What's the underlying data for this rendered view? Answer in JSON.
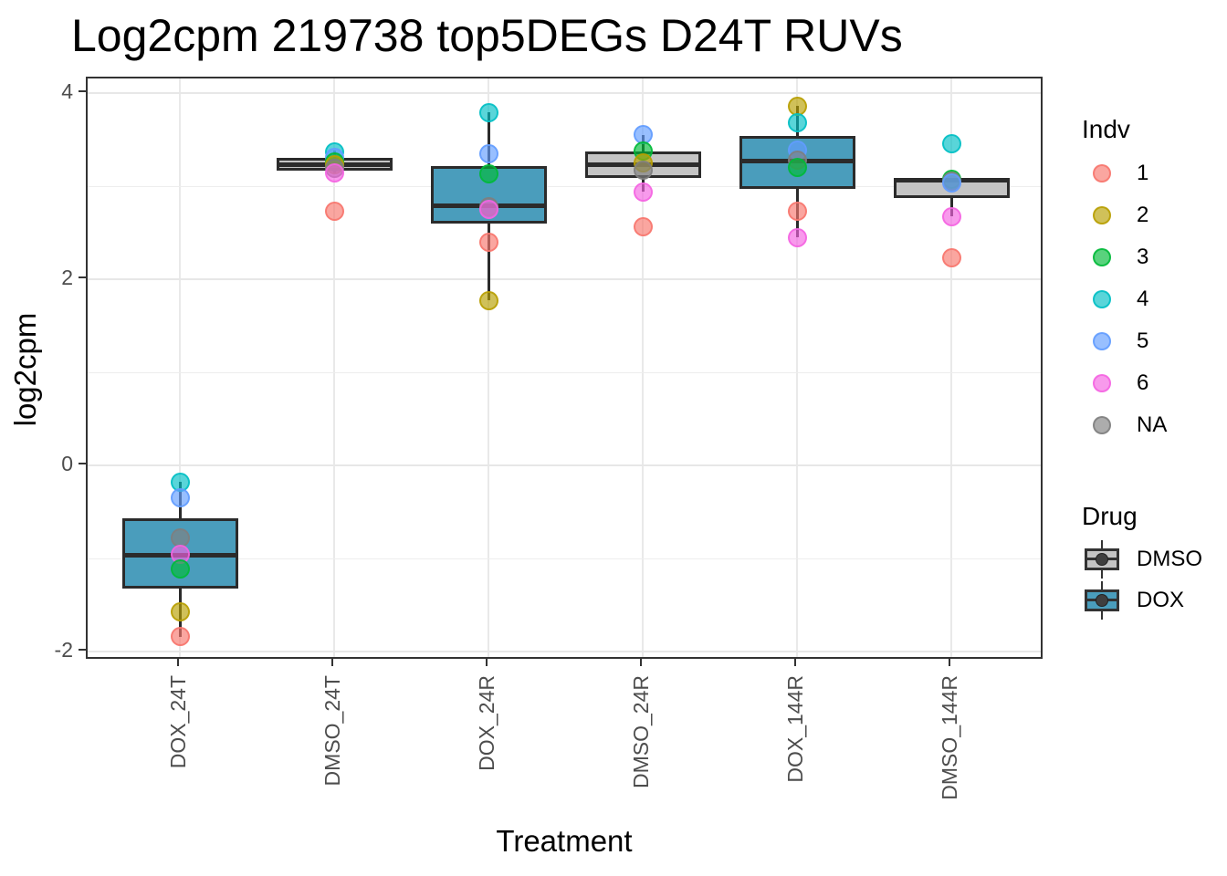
{
  "colors": {
    "panel_border": "#333333",
    "box_outline": "#2b2b2b",
    "grid_major": "#e7e7e7",
    "grid_minor": "#ededed",
    "axis_text": "#4d4d4d",
    "drug_fill": {
      "DMSO": "#c4c4c4",
      "DOX": "#4a9dbc"
    },
    "indv_base": {
      "1": "#F8766D",
      "2": "#B79F00",
      "3": "#00BA38",
      "4": "#00BFC4",
      "5": "#619CFF",
      "6": "#F564E2",
      "NA": "#7F7F7F"
    },
    "point_alpha": 0.65
  },
  "chart_data": {
    "type": "boxplot",
    "title": "Log2cpm 219738 top5DEGs D24T RUVs",
    "xlabel": "Treatment",
    "ylabel": "log2cpm",
    "ylim": [
      -2.1,
      4.16
    ],
    "y_ticks": [
      {
        "v": 4,
        "label": "4"
      },
      {
        "v": 2,
        "label": "2"
      },
      {
        "v": 0,
        "label": "0"
      },
      {
        "v": -2,
        "label": "-2"
      }
    ],
    "y_minor": [
      3,
      1,
      -1
    ],
    "grid": true,
    "categories": [
      "DOX_24T",
      "DMSO_24T",
      "DOX_24R",
      "DMSO_24R",
      "DOX_144R",
      "DMSO_144R"
    ],
    "groups": [
      {
        "category": "DOX_24T",
        "drug": "DOX",
        "box": {
          "q1": -1.32,
          "median": -0.96,
          "q3": -0.57,
          "whisker_low": -1.84,
          "whisker_high": -0.18
        },
        "points": [
          {
            "indv": "4",
            "value": -0.18
          },
          {
            "indv": "5",
            "value": -0.35
          },
          {
            "indv": "NA",
            "value": -0.78
          },
          {
            "indv": "6",
            "value": -0.96
          },
          {
            "indv": "3",
            "value": -1.11
          },
          {
            "indv": "2",
            "value": -1.57
          },
          {
            "indv": "1",
            "value": -1.84
          }
        ]
      },
      {
        "category": "DMSO_24T",
        "drug": "DMSO",
        "box": {
          "q1": 3.17,
          "median": 3.24,
          "q3": 3.3,
          "whisker_low": 3.14,
          "whisker_high": 3.38
        },
        "points": [
          {
            "indv": "4",
            "value": 3.37
          },
          {
            "indv": "5",
            "value": 3.31
          },
          {
            "indv": "3",
            "value": 3.26
          },
          {
            "indv": "2",
            "value": 3.23
          },
          {
            "indv": "NA",
            "value": 3.19
          },
          {
            "indv": "6",
            "value": 3.14
          },
          {
            "indv": "1",
            "value": 2.73
          }
        ]
      },
      {
        "category": "DOX_24R",
        "drug": "DOX",
        "box": {
          "q1": 2.6,
          "median": 2.79,
          "q3": 3.22,
          "whisker_low": 1.77,
          "whisker_high": 3.79
        },
        "points": [
          {
            "indv": "4",
            "value": 3.79
          },
          {
            "indv": "5",
            "value": 3.35
          },
          {
            "indv": "3",
            "value": 3.13
          },
          {
            "indv": "NA",
            "value": 2.78
          },
          {
            "indv": "6",
            "value": 2.75
          },
          {
            "indv": "1",
            "value": 2.4
          },
          {
            "indv": "2",
            "value": 1.77
          }
        ]
      },
      {
        "category": "DMSO_24R",
        "drug": "DMSO",
        "box": {
          "q1": 3.09,
          "median": 3.24,
          "q3": 3.37,
          "whisker_low": 2.94,
          "whisker_high": 3.55
        },
        "points": [
          {
            "indv": "5",
            "value": 3.55
          },
          {
            "indv": "3",
            "value": 3.38
          },
          {
            "indv": "2",
            "value": 3.25
          },
          {
            "indv": "NA",
            "value": 3.17
          },
          {
            "indv": "6",
            "value": 2.94
          },
          {
            "indv": "1",
            "value": 2.56
          }
        ]
      },
      {
        "category": "DOX_144R",
        "drug": "DOX",
        "box": {
          "q1": 2.97,
          "median": 3.27,
          "q3": 3.54,
          "whisker_low": 2.45,
          "whisker_high": 3.86
        },
        "points": [
          {
            "indv": "2",
            "value": 3.86
          },
          {
            "indv": "4",
            "value": 3.68
          },
          {
            "indv": "5",
            "value": 3.39
          },
          {
            "indv": "NA",
            "value": 3.28
          },
          {
            "indv": "3",
            "value": 3.2
          },
          {
            "indv": "1",
            "value": 2.73
          },
          {
            "indv": "6",
            "value": 2.45
          }
        ]
      },
      {
        "category": "DMSO_144R",
        "drug": "DMSO",
        "box": {
          "q1": 2.87,
          "median": 3.07,
          "q3": 3.09,
          "whisker_low": 2.68,
          "whisker_high": 3.09
        },
        "points": [
          {
            "indv": "4",
            "value": 3.46
          },
          {
            "indv": "3",
            "value": 3.07
          },
          {
            "indv": "NA",
            "value": 3.05
          },
          {
            "indv": "5",
            "value": 3.03
          },
          {
            "indv": "6",
            "value": 2.67
          },
          {
            "indv": "1",
            "value": 2.23
          }
        ]
      }
    ]
  },
  "legend": {
    "indv": {
      "title": "Indv",
      "items": [
        {
          "label": "1"
        },
        {
          "label": "2"
        },
        {
          "label": "3"
        },
        {
          "label": "4"
        },
        {
          "label": "5"
        },
        {
          "label": "6"
        },
        {
          "label": "NA"
        }
      ]
    },
    "drug": {
      "title": "Drug",
      "items": [
        {
          "label": "DMSO"
        },
        {
          "label": "DOX"
        }
      ]
    }
  }
}
